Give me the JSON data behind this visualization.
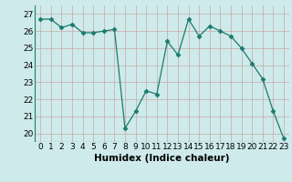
{
  "x": [
    0,
    1,
    2,
    3,
    4,
    5,
    6,
    7,
    8,
    9,
    10,
    11,
    12,
    13,
    14,
    15,
    16,
    17,
    18,
    19,
    20,
    21,
    22,
    23
  ],
  "y": [
    26.7,
    26.7,
    26.2,
    26.4,
    25.9,
    25.9,
    26.0,
    26.1,
    20.3,
    21.3,
    22.5,
    22.3,
    25.4,
    24.6,
    26.7,
    25.7,
    26.3,
    26.0,
    25.7,
    25.0,
    24.1,
    23.2,
    21.3,
    19.7
  ],
  "line_color": "#1a7a6e",
  "marker": "D",
  "marker_size": 2.5,
  "bg_color": "#ceeaea",
  "grid_color_h": "#c8a8a8",
  "grid_color_v": "#c8a8a8",
  "xlabel": "Humidex (Indice chaleur)",
  "xlim": [
    -0.5,
    23.5
  ],
  "ylim": [
    19.5,
    27.5
  ],
  "yticks": [
    20,
    21,
    22,
    23,
    24,
    25,
    26,
    27
  ],
  "xtick_labels": [
    "0",
    "1",
    "2",
    "3",
    "4",
    "5",
    "6",
    "7",
    "8",
    "9",
    "10",
    "11",
    "12",
    "13",
    "14",
    "15",
    "16",
    "17",
    "18",
    "19",
    "20",
    "21",
    "22",
    "23"
  ],
  "tick_font_size": 6.5,
  "xlabel_font_size": 7.5
}
